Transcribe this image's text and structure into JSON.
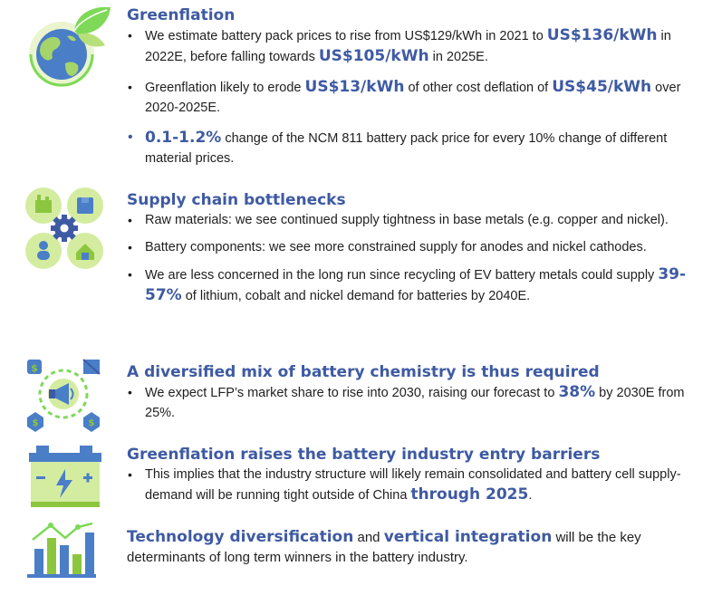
{
  "sections": [
    {
      "icon": "earth-leaf-icon",
      "heading": "Greenflation",
      "bullets": [
        {
          "p1": "We estimate battery pack prices to rise from US$129/kWh in 2021 to ",
          "h1": "US$136/kWh",
          "p2": " in 2022E, before falling towards ",
          "h2": "US$105/kWh",
          "p3": " in 2025E."
        },
        {
          "p1": "Greenflation likely to erode ",
          "h1": "US$13/kWh",
          "p2": " of other cost deflation of ",
          "h2": "US$45/kWh",
          "p3": " over 2020-2025E."
        },
        {
          "h1": "0.1-1.2%",
          "p1": " change of the NCM 811 battery pack price for every 10% change of different material prices."
        }
      ]
    },
    {
      "icon": "supply-chain-gear-icon",
      "heading": "Supply chain bottlenecks",
      "bullets": [
        {
          "p1": "Raw materials: we see continued supply tightness in base metals (e.g. copper and nickel)."
        },
        {
          "p1": "Battery components: we see more constrained supply for anodes and nickel cathodes."
        },
        {
          "p1": "We are less concerned in the long run since recycling of EV battery metals could supply ",
          "h1": "39-57%",
          "p2": " of lithium, cobalt and nickel demand for batteries by 2040E."
        }
      ]
    },
    {
      "icon": "megaphone-network-icon",
      "heading": "A diversified mix of battery chemistry is thus required",
      "bullets": [
        {
          "p1": "We expect LFP’s market share to rise into 2030, raising our forecast to ",
          "h1": "38%",
          "p2": " by 2030E from 25%."
        }
      ]
    },
    {
      "icon": "battery-icon",
      "heading": "Greenflation raises the battery industry entry barriers",
      "bullets": [
        {
          "p1": "This implies that the industry structure will likely remain consolidated and battery cell supply-demand will be running tight outside of China ",
          "h1": "through 2025",
          "p2": "."
        }
      ]
    },
    {
      "icon": "bar-chart-trend-icon",
      "line": {
        "h1": "Technology diversification",
        "p1": " and ",
        "h2": "vertical integration",
        "p2": " will be the key determinants of long term winners in the battery industry."
      }
    }
  ]
}
